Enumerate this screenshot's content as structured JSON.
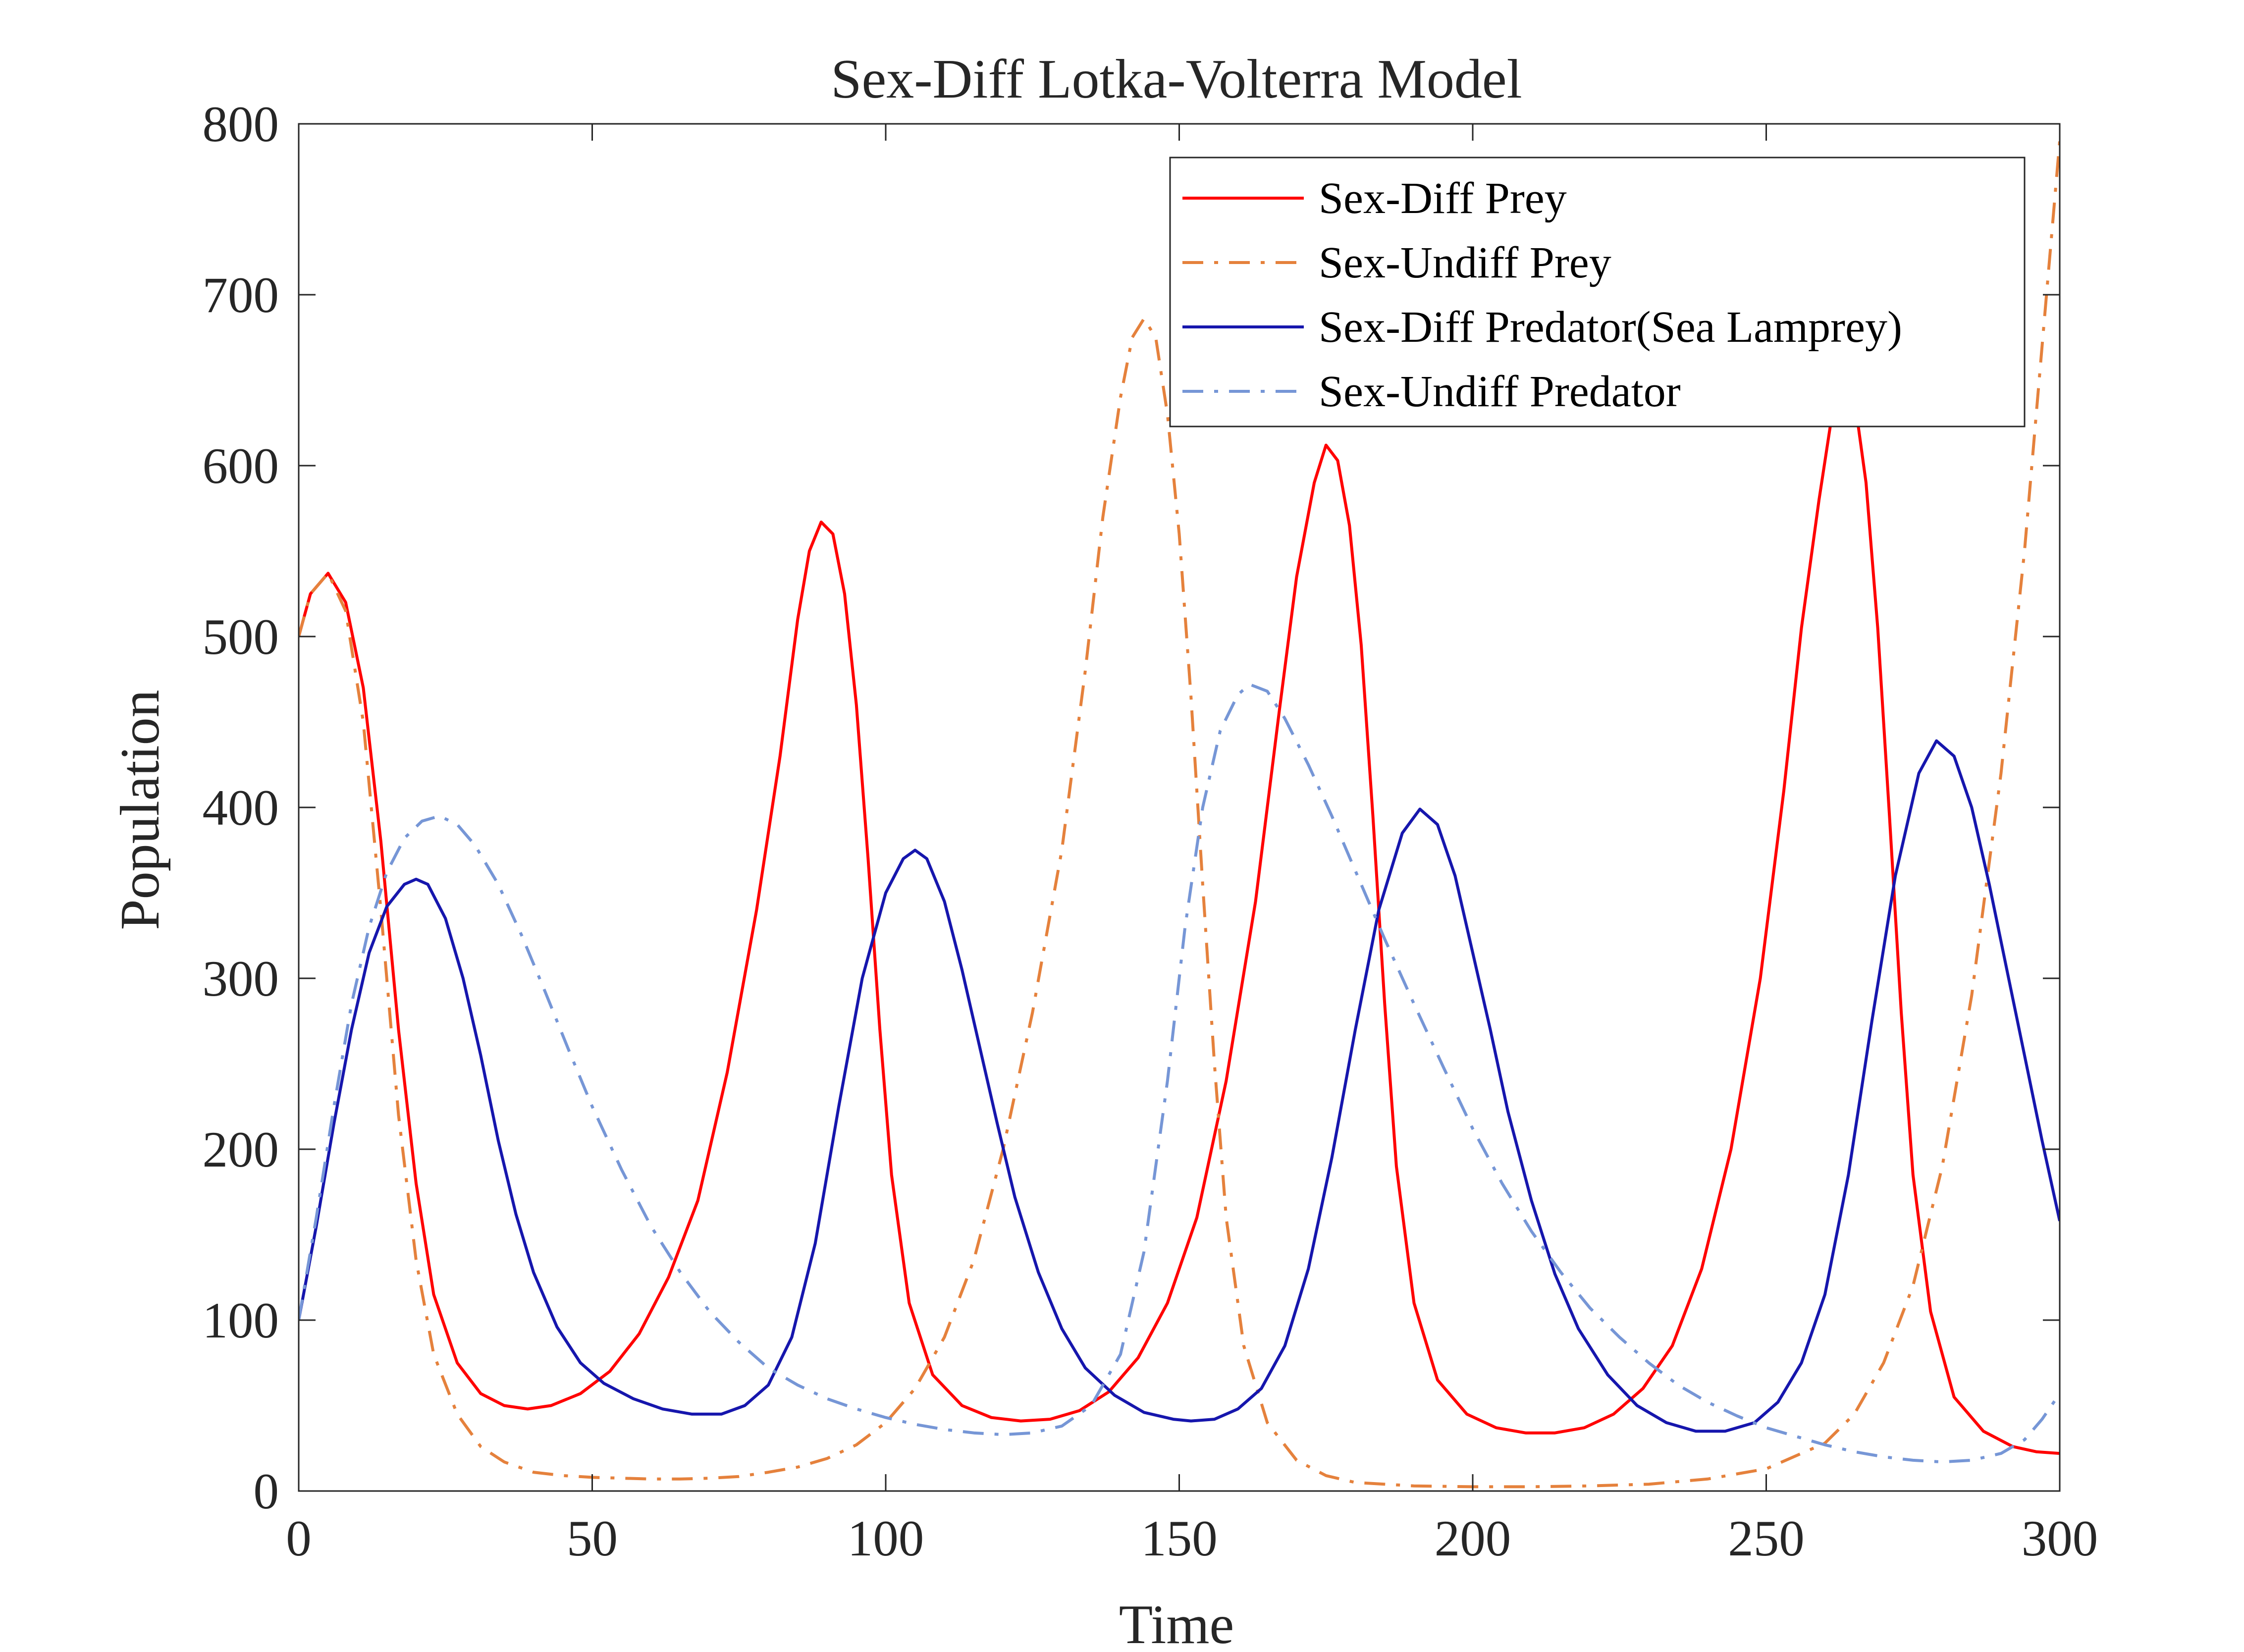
{
  "chart_data": {
    "type": "line",
    "title": "Sex-Diff Lotka-Volterra Model",
    "xlabel": "Time",
    "ylabel": "Population",
    "xlim": [
      0,
      300
    ],
    "ylim": [
      0,
      800
    ],
    "xticks": [
      0,
      50,
      100,
      150,
      200,
      250,
      300
    ],
    "yticks": [
      0,
      100,
      200,
      300,
      400,
      500,
      600,
      700,
      800
    ],
    "xtick_labels": [
      "0",
      "50",
      "100",
      "150",
      "200",
      "250",
      "300"
    ],
    "ytick_labels": [
      "0",
      "100",
      "200",
      "300",
      "400",
      "500",
      "600",
      "700",
      "800"
    ],
    "grid": false,
    "legend_position": "top-right",
    "series": [
      {
        "name": "Sex-Diff Prey",
        "color": "#ff0000",
        "style": "solid",
        "points": [
          [
            0,
            500
          ],
          [
            2,
            525
          ],
          [
            5,
            537
          ],
          [
            8,
            520
          ],
          [
            11,
            470
          ],
          [
            14,
            380
          ],
          [
            17,
            270
          ],
          [
            20,
            180
          ],
          [
            23,
            115
          ],
          [
            27,
            75
          ],
          [
            31,
            57
          ],
          [
            35,
            50
          ],
          [
            39,
            48
          ],
          [
            43,
            50
          ],
          [
            48,
            57
          ],
          [
            53,
            70
          ],
          [
            58,
            92
          ],
          [
            63,
            125
          ],
          [
            68,
            170
          ],
          [
            73,
            245
          ],
          [
            78,
            340
          ],
          [
            82,
            430
          ],
          [
            85,
            510
          ],
          [
            87,
            550
          ],
          [
            89,
            567
          ],
          [
            91,
            560
          ],
          [
            93,
            525
          ],
          [
            95,
            460
          ],
          [
            97,
            370
          ],
          [
            99,
            270
          ],
          [
            101,
            185
          ],
          [
            104,
            110
          ],
          [
            108,
            68
          ],
          [
            113,
            50
          ],
          [
            118,
            43
          ],
          [
            123,
            41
          ],
          [
            128,
            42
          ],
          [
            133,
            47
          ],
          [
            138,
            58
          ],
          [
            143,
            78
          ],
          [
            148,
            110
          ],
          [
            153,
            160
          ],
          [
            158,
            240
          ],
          [
            163,
            345
          ],
          [
            167,
            455
          ],
          [
            170,
            535
          ],
          [
            173,
            590
          ],
          [
            175,
            612
          ],
          [
            177,
            603
          ],
          [
            179,
            565
          ],
          [
            181,
            495
          ],
          [
            183,
            395
          ],
          [
            185,
            285
          ],
          [
            187,
            190
          ],
          [
            190,
            110
          ],
          [
            194,
            65
          ],
          [
            199,
            45
          ],
          [
            204,
            37
          ],
          [
            209,
            34
          ],
          [
            214,
            34
          ],
          [
            219,
            37
          ],
          [
            224,
            45
          ],
          [
            229,
            60
          ],
          [
            234,
            85
          ],
          [
            239,
            130
          ],
          [
            244,
            200
          ],
          [
            249,
            300
          ],
          [
            253,
            410
          ],
          [
            256,
            505
          ],
          [
            259,
            580
          ],
          [
            261,
            625
          ],
          [
            263,
            648
          ],
          [
            265,
            640
          ],
          [
            267,
            590
          ],
          [
            269,
            505
          ],
          [
            271,
            395
          ],
          [
            273,
            280
          ],
          [
            275,
            185
          ],
          [
            278,
            105
          ],
          [
            282,
            55
          ],
          [
            287,
            35
          ],
          [
            292,
            26
          ],
          [
            296,
            23
          ],
          [
            300,
            22
          ]
        ]
      },
      {
        "name": "Sex-Undiff Prey",
        "color": "#e5813c",
        "style": "dash-dot",
        "points": [
          [
            0,
            500
          ],
          [
            2,
            525
          ],
          [
            5,
            537
          ],
          [
            8,
            515
          ],
          [
            11,
            450
          ],
          [
            14,
            340
          ],
          [
            17,
            220
          ],
          [
            20,
            135
          ],
          [
            23,
            80
          ],
          [
            27,
            45
          ],
          [
            31,
            26
          ],
          [
            35,
            17
          ],
          [
            40,
            11
          ],
          [
            45,
            9
          ],
          [
            50,
            8
          ],
          [
            55,
            7.5
          ],
          [
            60,
            7
          ],
          [
            65,
            7
          ],
          [
            70,
            7.5
          ],
          [
            75,
            8.5
          ],
          [
            80,
            11
          ],
          [
            85,
            14
          ],
          [
            90,
            19
          ],
          [
            95,
            27
          ],
          [
            100,
            40
          ],
          [
            105,
            60
          ],
          [
            110,
            90
          ],
          [
            115,
            135
          ],
          [
            120,
            200
          ],
          [
            125,
            280
          ],
          [
            130,
            375
          ],
          [
            134,
            480
          ],
          [
            137,
            570
          ],
          [
            140,
            640
          ],
          [
            142,
            675
          ],
          [
            144,
            686
          ],
          [
            146,
            675
          ],
          [
            148,
            630
          ],
          [
            150,
            560
          ],
          [
            152,
            465
          ],
          [
            154,
            355
          ],
          [
            156,
            250
          ],
          [
            158,
            160
          ],
          [
            161,
            85
          ],
          [
            165,
            40
          ],
          [
            170,
            18
          ],
          [
            175,
            9
          ],
          [
            180,
            5
          ],
          [
            190,
            3
          ],
          [
            200,
            2.5
          ],
          [
            210,
            2.5
          ],
          [
            220,
            3
          ],
          [
            230,
            4
          ],
          [
            240,
            7
          ],
          [
            250,
            13
          ],
          [
            260,
            28
          ],
          [
            265,
            45
          ],
          [
            270,
            75
          ],
          [
            275,
            120
          ],
          [
            280,
            190
          ],
          [
            285,
            290
          ],
          [
            290,
            420
          ],
          [
            294,
            550
          ],
          [
            297,
            670
          ],
          [
            300,
            790
          ]
        ]
      },
      {
        "name": "Sex-Diff Predator(Sea Lamprey)",
        "color": "#1616ad",
        "style": "solid",
        "points": [
          [
            0,
            100
          ],
          [
            3,
            155
          ],
          [
            6,
            215
          ],
          [
            9,
            270
          ],
          [
            12,
            315
          ],
          [
            15,
            342
          ],
          [
            18,
            355
          ],
          [
            20,
            358
          ],
          [
            22,
            355
          ],
          [
            25,
            335
          ],
          [
            28,
            300
          ],
          [
            31,
            255
          ],
          [
            34,
            205
          ],
          [
            37,
            162
          ],
          [
            40,
            128
          ],
          [
            44,
            96
          ],
          [
            48,
            75
          ],
          [
            52,
            63
          ],
          [
            57,
            54
          ],
          [
            62,
            48
          ],
          [
            67,
            45
          ],
          [
            72,
            45
          ],
          [
            76,
            50
          ],
          [
            80,
            62
          ],
          [
            84,
            90
          ],
          [
            88,
            145
          ],
          [
            92,
            225
          ],
          [
            96,
            300
          ],
          [
            100,
            350
          ],
          [
            103,
            370
          ],
          [
            105,
            375
          ],
          [
            107,
            370
          ],
          [
            110,
            345
          ],
          [
            113,
            305
          ],
          [
            116,
            260
          ],
          [
            119,
            215
          ],
          [
            122,
            172
          ],
          [
            126,
            128
          ],
          [
            130,
            95
          ],
          [
            134,
            72
          ],
          [
            139,
            56
          ],
          [
            144,
            46
          ],
          [
            149,
            42
          ],
          [
            152,
            41
          ],
          [
            156,
            42
          ],
          [
            160,
            48
          ],
          [
            164,
            60
          ],
          [
            168,
            85
          ],
          [
            172,
            130
          ],
          [
            176,
            195
          ],
          [
            180,
            270
          ],
          [
            184,
            340
          ],
          [
            188,
            385
          ],
          [
            191,
            399
          ],
          [
            194,
            390
          ],
          [
            197,
            360
          ],
          [
            200,
            315
          ],
          [
            203,
            270
          ],
          [
            206,
            222
          ],
          [
            210,
            170
          ],
          [
            214,
            127
          ],
          [
            218,
            95
          ],
          [
            223,
            68
          ],
          [
            228,
            50
          ],
          [
            233,
            40
          ],
          [
            238,
            35
          ],
          [
            243,
            35
          ],
          [
            248,
            40
          ],
          [
            252,
            52
          ],
          [
            256,
            75
          ],
          [
            260,
            115
          ],
          [
            264,
            185
          ],
          [
            268,
            275
          ],
          [
            272,
            360
          ],
          [
            276,
            420
          ],
          [
            279,
            439
          ],
          [
            282,
            430
          ],
          [
            285,
            400
          ],
          [
            288,
            355
          ],
          [
            291,
            305
          ],
          [
            294,
            255
          ],
          [
            297,
            205
          ],
          [
            300,
            158
          ]
        ]
      },
      {
        "name": "Sex-Undiff Predator",
        "color": "#7696d6",
        "style": "dash-dot",
        "points": [
          [
            0,
            100
          ],
          [
            3,
            160
          ],
          [
            6,
            225
          ],
          [
            9,
            285
          ],
          [
            12,
            330
          ],
          [
            15,
            362
          ],
          [
            18,
            382
          ],
          [
            21,
            392
          ],
          [
            24,
            395
          ],
          [
            27,
            390
          ],
          [
            30,
            378
          ],
          [
            34,
            355
          ],
          [
            38,
            325
          ],
          [
            42,
            292
          ],
          [
            46,
            258
          ],
          [
            50,
            225
          ],
          [
            55,
            188
          ],
          [
            60,
            155
          ],
          [
            65,
            128
          ],
          [
            70,
            105
          ],
          [
            75,
            87
          ],
          [
            80,
            72
          ],
          [
            85,
            62
          ],
          [
            90,
            54
          ],
          [
            95,
            48
          ],
          [
            100,
            43
          ],
          [
            105,
            39
          ],
          [
            110,
            36
          ],
          [
            115,
            34
          ],
          [
            120,
            33
          ],
          [
            125,
            34
          ],
          [
            130,
            38
          ],
          [
            135,
            50
          ],
          [
            140,
            80
          ],
          [
            144,
            140
          ],
          [
            148,
            240
          ],
          [
            151,
            330
          ],
          [
            154,
            400
          ],
          [
            157,
            445
          ],
          [
            160,
            466
          ],
          [
            162,
            472
          ],
          [
            165,
            468
          ],
          [
            168,
            452
          ],
          [
            172,
            425
          ],
          [
            176,
            395
          ],
          [
            180,
            363
          ],
          [
            185,
            323
          ],
          [
            190,
            285
          ],
          [
            195,
            248
          ],
          [
            200,
            212
          ],
          [
            205,
            180
          ],
          [
            210,
            152
          ],
          [
            215,
            128
          ],
          [
            220,
            107
          ],
          [
            225,
            90
          ],
          [
            230,
            75
          ],
          [
            235,
            62
          ],
          [
            240,
            52
          ],
          [
            245,
            44
          ],
          [
            250,
            37
          ],
          [
            255,
            32
          ],
          [
            260,
            27
          ],
          [
            265,
            23
          ],
          [
            270,
            20
          ],
          [
            275,
            18
          ],
          [
            280,
            17
          ],
          [
            285,
            18
          ],
          [
            290,
            22
          ],
          [
            294,
            30
          ],
          [
            297,
            42
          ],
          [
            300,
            57
          ]
        ]
      }
    ]
  }
}
